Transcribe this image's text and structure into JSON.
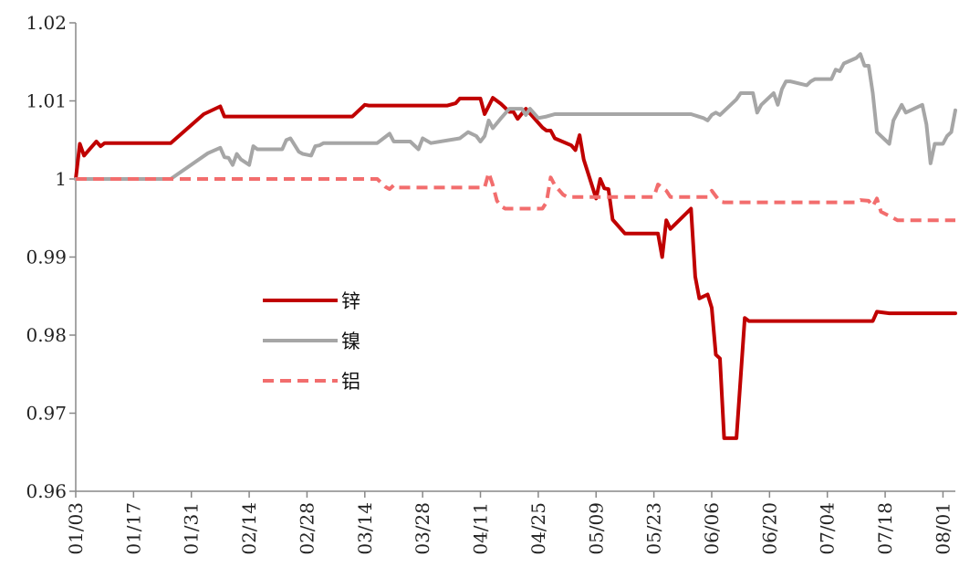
{
  "chart_data": {
    "type": "line",
    "title": "",
    "xlabel": "",
    "ylabel": "",
    "ylim": [
      0.96,
      1.02
    ],
    "yticks": [
      "0.96",
      "0.97",
      "0.98",
      "0.99",
      "1",
      "1.01",
      "1.02"
    ],
    "xlim": [
      "01/03",
      "08/04"
    ],
    "xticks": [
      "01/03",
      "01/17",
      "01/31",
      "02/14",
      "02/28",
      "03/14",
      "03/28",
      "04/11",
      "04/25",
      "05/09",
      "05/23",
      "06/06",
      "06/20",
      "07/04",
      "07/18",
      "08/01"
    ],
    "grid": false,
    "legend_position": "center-left",
    "series": [
      {
        "name": "锌",
        "color": "#c00000",
        "dash": "solid",
        "points": [
          [
            "01/03",
            1.0
          ],
          [
            "01/04",
            1.0045
          ],
          [
            "01/05",
            1.003
          ],
          [
            "01/07",
            1.0042
          ],
          [
            "01/08",
            1.0048
          ],
          [
            "01/09",
            1.0042
          ],
          [
            "01/10",
            1.0046
          ],
          [
            "01/26",
            1.0046
          ],
          [
            "02/03",
            1.0083
          ],
          [
            "02/07",
            1.0093
          ],
          [
            "02/08",
            1.008
          ],
          [
            "03/11",
            1.008
          ],
          [
            "03/14",
            1.0095
          ],
          [
            "03/15",
            1.0094
          ],
          [
            "04/03",
            1.0094
          ],
          [
            "04/05",
            1.0097
          ],
          [
            "04/06",
            1.0103
          ],
          [
            "04/11",
            1.0103
          ],
          [
            "04/12",
            1.0083
          ],
          [
            "04/14",
            1.0104
          ],
          [
            "04/16",
            1.0096
          ],
          [
            "04/18",
            1.0086
          ],
          [
            "04/19",
            1.0086
          ],
          [
            "04/20",
            1.0077
          ],
          [
            "04/22",
            1.009
          ],
          [
            "04/26",
            1.0066
          ],
          [
            "04/27",
            1.0062
          ],
          [
            "04/28",
            1.0062
          ],
          [
            "04/29",
            1.0052
          ],
          [
            "05/03",
            1.0043
          ],
          [
            "05/04",
            1.0037
          ],
          [
            "05/05",
            1.0056
          ],
          [
            "05/06",
            1.0025
          ],
          [
            "05/09",
            0.9975
          ],
          [
            "05/10",
            1.0
          ],
          [
            "05/11",
            0.9988
          ],
          [
            "05/12",
            0.9987
          ],
          [
            "05/13",
            0.9948
          ],
          [
            "05/16",
            0.993
          ],
          [
            "05/24",
            0.993
          ],
          [
            "05/25",
            0.99
          ],
          [
            "05/26",
            0.9947
          ],
          [
            "05/27",
            0.9936
          ],
          [
            "06/01",
            0.9962
          ],
          [
            "06/02",
            0.9875
          ],
          [
            "06/03",
            0.9847
          ],
          [
            "06/05",
            0.9852
          ],
          [
            "06/06",
            0.9835
          ],
          [
            "06/07",
            0.9775
          ],
          [
            "06/08",
            0.977
          ],
          [
            "06/09",
            0.9668
          ],
          [
            "06/12",
            0.9668
          ],
          [
            "06/14",
            0.9822
          ],
          [
            "06/15",
            0.9818
          ],
          [
            "07/15",
            0.9818
          ],
          [
            "07/16",
            0.983
          ],
          [
            "07/19",
            0.9828
          ],
          [
            "08/04",
            0.9828
          ]
        ]
      },
      {
        "name": "镍",
        "color": "#a6a6a6",
        "dash": "solid",
        "points": [
          [
            "01/03",
            1.0
          ],
          [
            "01/26",
            1.0
          ],
          [
            "02/04",
            1.0033
          ],
          [
            "02/07",
            1.004
          ],
          [
            "02/08",
            1.0028
          ],
          [
            "02/09",
            1.0027
          ],
          [
            "02/10",
            1.0018
          ],
          [
            "02/11",
            1.0032
          ],
          [
            "02/12",
            1.0025
          ],
          [
            "02/14",
            1.0018
          ],
          [
            "02/15",
            1.0042
          ],
          [
            "02/16",
            1.0038
          ],
          [
            "02/22",
            1.0038
          ],
          [
            "02/23",
            1.005
          ],
          [
            "02/24",
            1.0052
          ],
          [
            "02/26",
            1.0035
          ],
          [
            "02/27",
            1.0032
          ],
          [
            "03/01",
            1.003
          ],
          [
            "03/02",
            1.0042
          ],
          [
            "03/03",
            1.0043
          ],
          [
            "03/04",
            1.0046
          ],
          [
            "03/17",
            1.0046
          ],
          [
            "03/20",
            1.0058
          ],
          [
            "03/21",
            1.0048
          ],
          [
            "03/25",
            1.0048
          ],
          [
            "03/27",
            1.0038
          ],
          [
            "03/28",
            1.0052
          ],
          [
            "03/30",
            1.0046
          ],
          [
            "04/06",
            1.0052
          ],
          [
            "04/08",
            1.006
          ],
          [
            "04/10",
            1.0055
          ],
          [
            "04/11",
            1.0048
          ],
          [
            "04/12",
            1.0055
          ],
          [
            "04/13",
            1.0075
          ],
          [
            "04/14",
            1.0065
          ],
          [
            "04/16",
            1.0078
          ],
          [
            "04/18",
            1.009
          ],
          [
            "04/21",
            1.009
          ],
          [
            "04/22",
            1.0082
          ],
          [
            "04/23",
            1.009
          ],
          [
            "04/25",
            1.0078
          ],
          [
            "04/27",
            1.008
          ],
          [
            "04/29",
            1.0083
          ],
          [
            "06/01",
            1.0083
          ],
          [
            "06/04",
            1.0078
          ],
          [
            "06/05",
            1.0075
          ],
          [
            "06/06",
            1.0082
          ],
          [
            "06/07",
            1.0085
          ],
          [
            "06/08",
            1.0082
          ],
          [
            "06/12",
            1.0102
          ],
          [
            "06/13",
            1.011
          ],
          [
            "06/16",
            1.011
          ],
          [
            "06/17",
            1.0085
          ],
          [
            "06/18",
            1.0095
          ],
          [
            "06/21",
            1.011
          ],
          [
            "06/22",
            1.0095
          ],
          [
            "06/23",
            1.0115
          ],
          [
            "06/24",
            1.0125
          ],
          [
            "06/25",
            1.0125
          ],
          [
            "06/29",
            1.012
          ],
          [
            "06/30",
            1.0125
          ],
          [
            "07/01",
            1.0128
          ],
          [
            "07/05",
            1.0128
          ],
          [
            "07/06",
            1.014
          ],
          [
            "07/07",
            1.0138
          ],
          [
            "07/08",
            1.0148
          ],
          [
            "07/11",
            1.0155
          ],
          [
            "07/12",
            1.016
          ],
          [
            "07/13",
            1.0145
          ],
          [
            "07/14",
            1.0145
          ],
          [
            "07/15",
            1.011
          ],
          [
            "07/16",
            1.006
          ],
          [
            "07/19",
            1.0045
          ],
          [
            "07/20",
            1.0075
          ],
          [
            "07/22",
            1.0095
          ],
          [
            "07/23",
            1.0085
          ],
          [
            "07/27",
            1.0095
          ],
          [
            "07/28",
            1.007
          ],
          [
            "07/29",
            1.002
          ],
          [
            "07/30",
            1.0045
          ],
          [
            "08/01",
            1.0045
          ],
          [
            "08/02",
            1.0055
          ],
          [
            "08/03",
            1.006
          ],
          [
            "08/04",
            1.0088
          ]
        ]
      },
      {
        "name": "铝",
        "color": "#f26d6d",
        "dash": "dashed",
        "points": [
          [
            "01/03",
            1.0
          ],
          [
            "03/17",
            1.0
          ],
          [
            "03/18",
            0.9995
          ],
          [
            "03/19",
            0.999
          ],
          [
            "03/20",
            0.9987
          ],
          [
            "03/21",
            0.9992
          ],
          [
            "03/22",
            0.9989
          ],
          [
            "04/12",
            0.9989
          ],
          [
            "04/13",
            1.0008
          ],
          [
            "04/14",
            0.9992
          ],
          [
            "04/15",
            0.9972
          ],
          [
            "04/16",
            0.9965
          ],
          [
            "04/17",
            0.9962
          ],
          [
            "04/26",
            0.9962
          ],
          [
            "04/27",
            0.997
          ],
          [
            "04/28",
            1.0002
          ],
          [
            "04/29",
            0.9992
          ],
          [
            "05/01",
            0.998
          ],
          [
            "05/02",
            0.9977
          ],
          [
            "05/23",
            0.9977
          ],
          [
            "05/24",
            0.9993
          ],
          [
            "05/26",
            0.9985
          ],
          [
            "05/27",
            0.9977
          ],
          [
            "06/05",
            0.9977
          ],
          [
            "06/06",
            0.9985
          ],
          [
            "06/08",
            0.9971
          ],
          [
            "06/09",
            0.997
          ],
          [
            "07/11",
            0.997
          ],
          [
            "07/12",
            0.9973
          ],
          [
            "07/14",
            0.9972
          ],
          [
            "07/15",
            0.9965
          ],
          [
            "07/16",
            0.9975
          ],
          [
            "07/17",
            0.9958
          ],
          [
            "07/20",
            0.995
          ],
          [
            "07/21",
            0.9947
          ],
          [
            "08/04",
            0.9947
          ]
        ]
      }
    ]
  }
}
